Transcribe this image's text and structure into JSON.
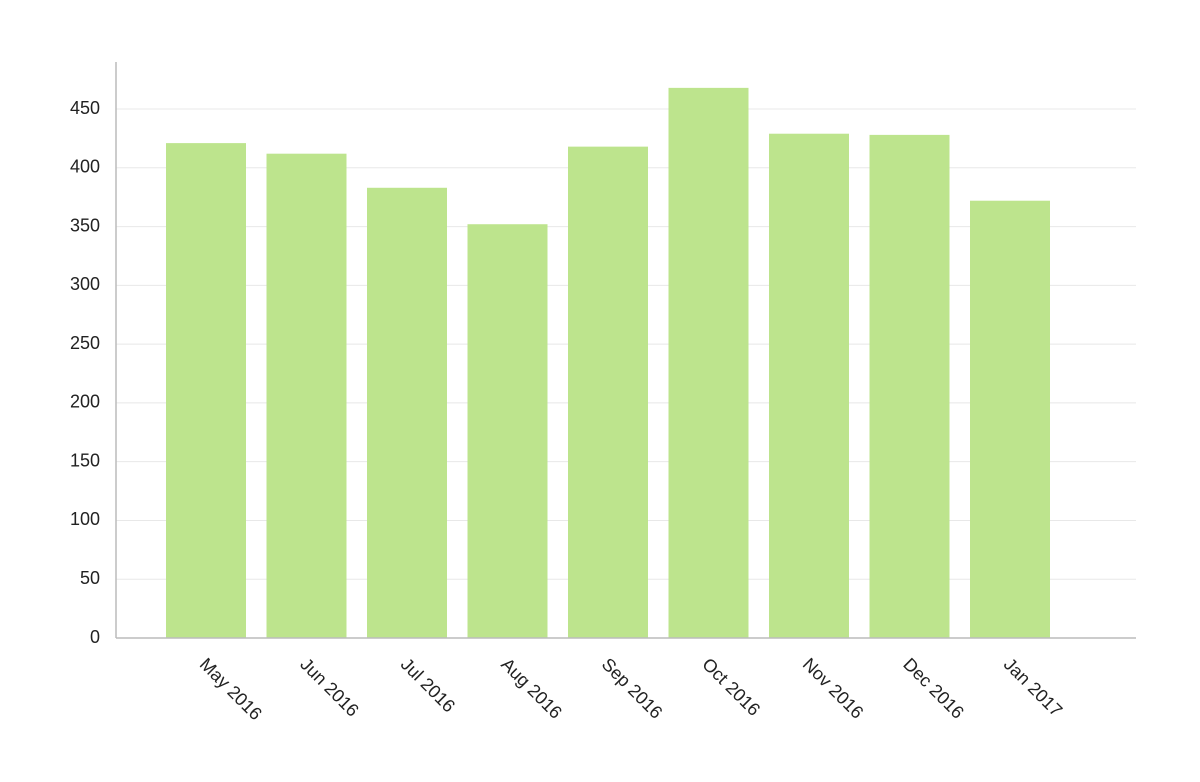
{
  "chart_data": {
    "type": "bar",
    "categories": [
      "May 2016",
      "Jun 2016",
      "Jul 2016",
      "Aug 2016",
      "Sep 2016",
      "Oct 2016",
      "Nov 2016",
      "Dec 2016",
      "Jan 2017"
    ],
    "values": [
      421,
      412,
      383,
      352,
      418,
      468,
      429,
      428,
      372
    ],
    "color": "#bde48d",
    "ylim": [
      0,
      490
    ],
    "yticks": [
      0,
      50,
      100,
      150,
      200,
      250,
      300,
      350,
      400,
      450
    ],
    "grid": true
  }
}
